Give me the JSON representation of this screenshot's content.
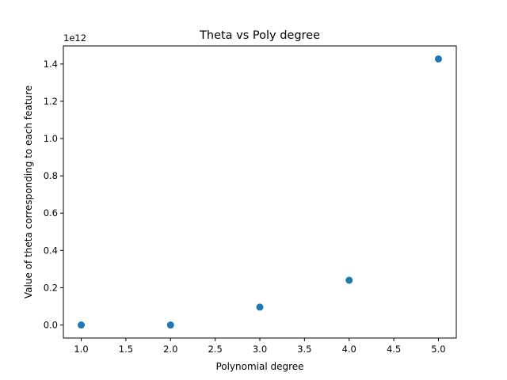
{
  "chart_data": {
    "type": "scatter",
    "title": "Theta vs Poly degree",
    "xlabel": "Polynomial degree",
    "ylabel": "Value of theta corresponding to each feature",
    "y_offset_label": "1e12",
    "xlim": [
      0.8,
      5.2
    ],
    "ylim": [
      -0.07,
      1.497
    ],
    "x_ticks": [
      1.0,
      1.5,
      2.0,
      2.5,
      3.0,
      3.5,
      4.0,
      4.5,
      5.0
    ],
    "x_tick_labels": [
      "1.0",
      "1.5",
      "2.0",
      "2.5",
      "3.0",
      "3.5",
      "4.0",
      "4.5",
      "5.0"
    ],
    "y_ticks": [
      0.0,
      0.2,
      0.4,
      0.6,
      0.8,
      1.0,
      1.2,
      1.4
    ],
    "y_tick_labels": [
      "0.0",
      "0.2",
      "0.4",
      "0.6",
      "0.8",
      "1.0",
      "1.2",
      "1.4"
    ],
    "y_units": "×1e12",
    "grid": false,
    "color": "#1f77b4",
    "points": [
      {
        "x": 1.0,
        "y": 0.0
      },
      {
        "x": 2.0,
        "y": 0.0
      },
      {
        "x": 3.0,
        "y": 0.096
      },
      {
        "x": 4.0,
        "y": 0.24
      },
      {
        "x": 5.0,
        "y": 1.427
      }
    ]
  }
}
